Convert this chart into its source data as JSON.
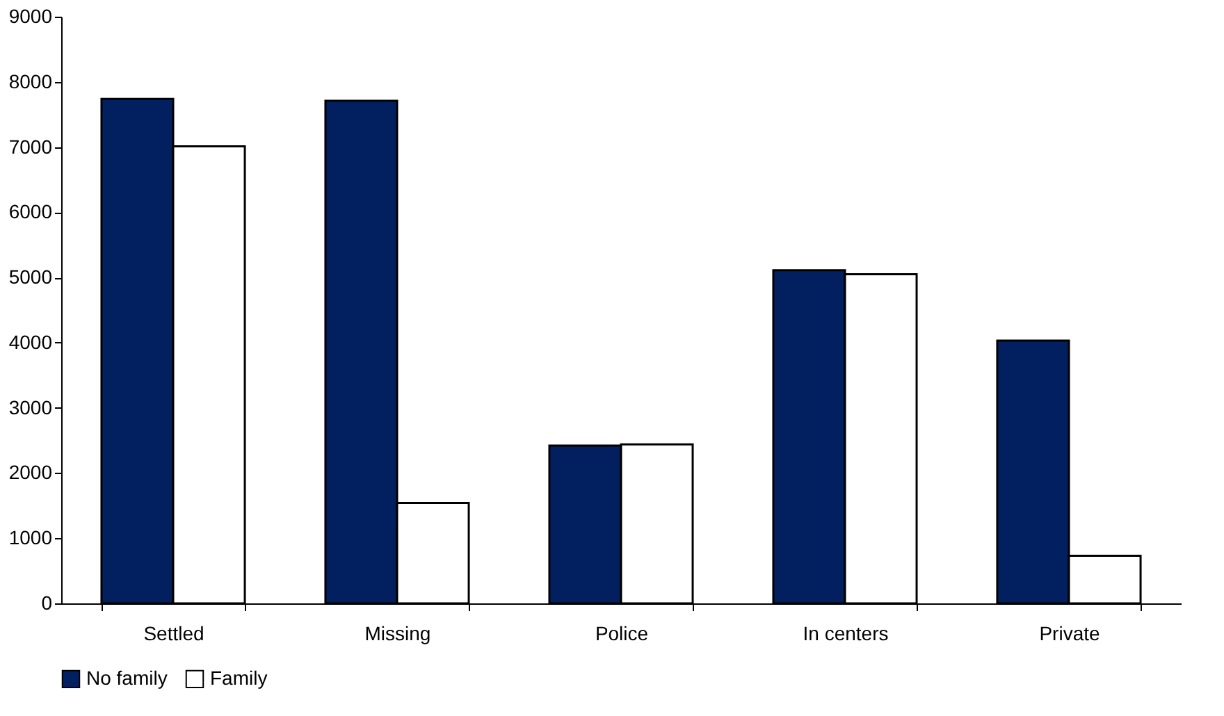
{
  "chart_data": {
    "type": "bar",
    "categories": [
      "Settled",
      "Missing",
      "Police",
      "In centers",
      "Private"
    ],
    "series": [
      {
        "name": "No family",
        "color": "#022060",
        "values": [
          7740,
          7710,
          2420,
          5110,
          4030
        ]
      },
      {
        "name": "Family",
        "color": "#ffffff",
        "values": [
          7010,
          1540,
          2440,
          5050,
          730
        ]
      }
    ],
    "ylim": [
      0,
      9000
    ],
    "yticks": [
      0,
      1000,
      2000,
      3000,
      4000,
      5000,
      6000,
      7000,
      8000,
      9000
    ],
    "grid": false,
    "legend": "bottom"
  }
}
